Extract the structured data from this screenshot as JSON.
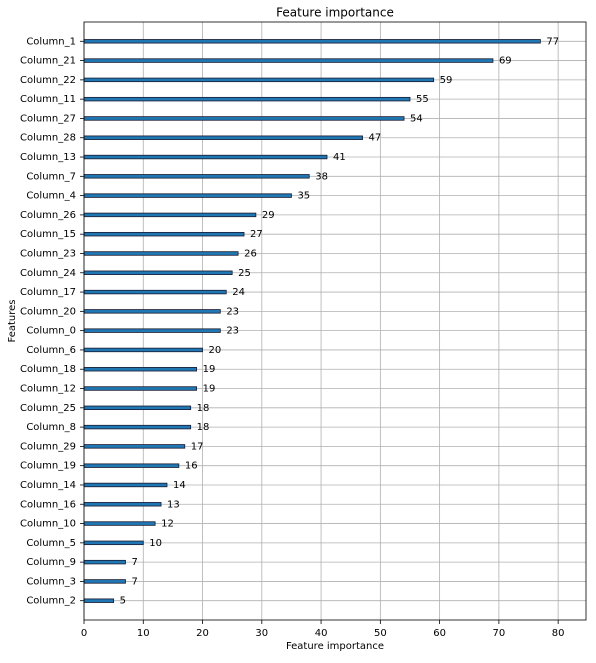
{
  "chart_data": {
    "type": "barh",
    "title": "Feature importance",
    "x_label": "Feature importance",
    "y_label": "Features",
    "categories": [
      "Column_1",
      "Column_21",
      "Column_22",
      "Column_11",
      "Column_27",
      "Column_28",
      "Column_13",
      "Column_7",
      "Column_4",
      "Column_26",
      "Column_15",
      "Column_23",
      "Column_24",
      "Column_17",
      "Column_20",
      "Column_0",
      "Column_6",
      "Column_18",
      "Column_12",
      "Column_25",
      "Column_8",
      "Column_29",
      "Column_19",
      "Column_14",
      "Column_16",
      "Column_10",
      "Column_5",
      "Column_9",
      "Column_3",
      "Column_2"
    ],
    "values": [
      77,
      69,
      59,
      55,
      54,
      47,
      41,
      38,
      35,
      29,
      27,
      26,
      25,
      24,
      23,
      23,
      20,
      19,
      19,
      18,
      18,
      17,
      16,
      14,
      13,
      12,
      10,
      7,
      7,
      5
    ],
    "color": "#1f77b4",
    "edge_color": "#1a1a2e",
    "xlim": [
      0,
      84.7
    ],
    "xticks": [
      0,
      10,
      20,
      30,
      40,
      50,
      60,
      70,
      80
    ],
    "grid": true
  }
}
